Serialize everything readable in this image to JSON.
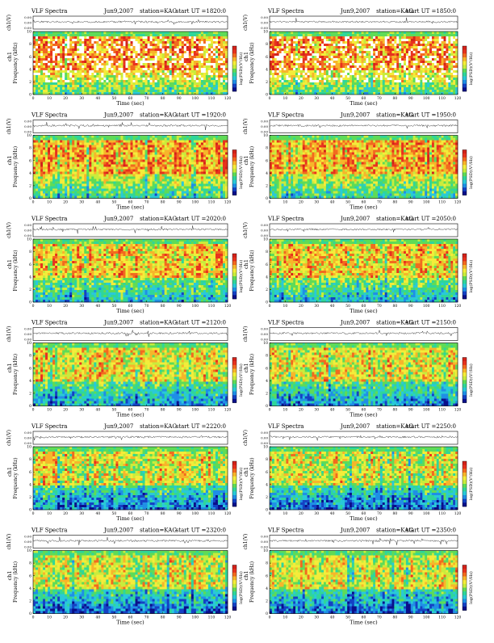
{
  "page": {
    "background": "#ffffff"
  },
  "colormap": [
    "#ffffff",
    "#d4221a",
    "#e8321e",
    "#f26a1f",
    "#f7b52a",
    "#f4ec3a",
    "#c9ec3c",
    "#5fdb57",
    "#2fd69a",
    "#29c9d8",
    "#1f8fe6",
    "#1541c4",
    "#0b0f8a"
  ],
  "chart_data": [
    {
      "type": "heatmap",
      "id": "p1",
      "title": "VLF Spectra",
      "date": "Jun9,2007",
      "station": "station=KAG",
      "start": "start UT =1820:0",
      "intensity": 0.92,
      "ylabel_wave": "ch1(V)",
      "wave_ticks": [
        "0.00",
        "0.00",
        "0.00"
      ],
      "ylabel_chan": "ch1",
      "ylabel_freq": "Frequency (kHz)",
      "xlabel": "Time (sec)",
      "xlim": [
        0,
        120
      ],
      "ylim": [
        0,
        10
      ],
      "xticks": [
        "0",
        "10",
        "20",
        "30",
        "40",
        "50",
        "60",
        "70",
        "80",
        "90",
        "100",
        "110",
        "120"
      ],
      "yticks": [
        "0",
        "2",
        "4",
        "6",
        "8",
        "10"
      ],
      "colorbar_label": "log(PSD)(V²/Hz)"
    },
    {
      "type": "heatmap",
      "id": "p2",
      "title": "VLF Spectra",
      "date": "Jun9,2007",
      "station": "station=KAG",
      "start": "start UT =1850:0",
      "intensity": 0.9,
      "ylabel_wave": "ch1(V)",
      "wave_ticks": [
        "0.00",
        "0.00",
        "0.00"
      ],
      "ylabel_chan": "ch1",
      "ylabel_freq": "Frequency (kHz)",
      "xlabel": "Time (sec)",
      "xlim": [
        0,
        120
      ],
      "ylim": [
        0,
        10
      ],
      "xticks": [
        "0",
        "10",
        "20",
        "30",
        "40",
        "50",
        "60",
        "70",
        "80",
        "90",
        "100",
        "110",
        "120"
      ],
      "yticks": [
        "0",
        "2",
        "4",
        "6",
        "8",
        "10"
      ],
      "colorbar_label": "log(PSD)(V²/Hz)"
    },
    {
      "type": "heatmap",
      "id": "p3",
      "title": "VLF Spectra",
      "date": "Jun9,2007",
      "station": "station=KAG",
      "start": "start UT =1920:0",
      "intensity": 0.82,
      "ylabel_wave": "ch1(V)",
      "wave_ticks": [
        "0.00",
        "0.00",
        "0.00"
      ],
      "ylabel_chan": "ch1",
      "ylabel_freq": "Frequency (kHz)",
      "xlabel": "Time (sec)",
      "xlim": [
        0,
        120
      ],
      "ylim": [
        0,
        10
      ],
      "xticks": [
        "0",
        "10",
        "20",
        "30",
        "40",
        "50",
        "60",
        "70",
        "80",
        "90",
        "100",
        "110",
        "120"
      ],
      "yticks": [
        "0",
        "2",
        "4",
        "6",
        "8",
        "10"
      ],
      "colorbar_label": "log(PSD)(V²/Hz)"
    },
    {
      "type": "heatmap",
      "id": "p4",
      "title": "VLF Spectra",
      "date": "Jun9,2007",
      "station": "station=KAG",
      "start": "start UT =1950:0",
      "intensity": 0.8,
      "ylabel_wave": "ch1(V)",
      "wave_ticks": [
        "0.00",
        "0.00",
        "0.00"
      ],
      "ylabel_chan": "ch1",
      "ylabel_freq": "Frequency (kHz)",
      "xlabel": "Time (sec)",
      "xlim": [
        0,
        120
      ],
      "ylim": [
        0,
        10
      ],
      "xticks": [
        "0",
        "10",
        "20",
        "30",
        "40",
        "50",
        "60",
        "70",
        "80",
        "90",
        "100",
        "110",
        "120"
      ],
      "yticks": [
        "0",
        "2",
        "4",
        "6",
        "8",
        "10"
      ],
      "colorbar_label": "log(PSD)(V²/Hz)"
    },
    {
      "type": "heatmap",
      "id": "p5",
      "title": "VLF Spectra",
      "date": "Jun9,2007",
      "station": "station=KAG",
      "start": "start UT =2020:0",
      "intensity": 0.65,
      "ylabel_wave": "ch1(V)",
      "wave_ticks": [
        "0.00",
        "0.00",
        "0.00"
      ],
      "ylabel_chan": "ch1",
      "ylabel_freq": "Frequency (kHz)",
      "xlabel": "Time (sec)",
      "xlim": [
        0,
        120
      ],
      "ylim": [
        0,
        10
      ],
      "xticks": [
        "0",
        "10",
        "20",
        "30",
        "40",
        "50",
        "60",
        "70",
        "80",
        "90",
        "100",
        "110",
        "120"
      ],
      "yticks": [
        "0",
        "2",
        "4",
        "6",
        "8",
        "10"
      ],
      "colorbar_label": "log(PSD)(V²/Hz)"
    },
    {
      "type": "heatmap",
      "id": "p6",
      "title": "VLF Spectra",
      "date": "Jun9,2007",
      "station": "station=KAG",
      "start": "start UT =2050:0",
      "intensity": 0.62,
      "ylabel_wave": "ch1(V)",
      "wave_ticks": [
        "0.00",
        "0.00",
        "0.00"
      ],
      "ylabel_chan": "ch1",
      "ylabel_freq": "Frequency (kHz)",
      "xlabel": "Time (sec)",
      "xlim": [
        0,
        120
      ],
      "ylim": [
        0,
        10
      ],
      "xticks": [
        "0",
        "10",
        "20",
        "30",
        "40",
        "50",
        "60",
        "70",
        "80",
        "90",
        "100",
        "110",
        "120"
      ],
      "yticks": [
        "0",
        "2",
        "4",
        "6",
        "8",
        "10"
      ],
      "colorbar_label": "log(PSD)(V²/Hz)"
    },
    {
      "type": "heatmap",
      "id": "p7",
      "title": "VLF Spectra",
      "date": "Jun9,2007",
      "station": "station=KAG",
      "start": "start UT =2120:0",
      "intensity": 0.55,
      "ylabel_wave": "ch1(V)",
      "wave_ticks": [
        "0.00",
        "0.00",
        "0.00"
      ],
      "ylabel_chan": "ch1",
      "ylabel_freq": "Frequency (kHz)",
      "xlabel": "Time (sec)",
      "xlim": [
        0,
        120
      ],
      "ylim": [
        0,
        10
      ],
      "xticks": [
        "0",
        "10",
        "20",
        "30",
        "40",
        "50",
        "60",
        "70",
        "80",
        "90",
        "100",
        "110",
        "120"
      ],
      "yticks": [
        "0",
        "2",
        "4",
        "6",
        "8",
        "10"
      ],
      "colorbar_label": "log(PSD)(V²/Hz)"
    },
    {
      "type": "heatmap",
      "id": "p8",
      "title": "VLF Spectra",
      "date": "Jun9,2007",
      "station": "station=KAG",
      "start": "start UT =2150:0",
      "intensity": 0.52,
      "ylabel_wave": "ch1(V)",
      "wave_ticks": [
        "0.00",
        "0.00",
        "0.00"
      ],
      "ylabel_chan": "ch1",
      "ylabel_freq": "Frequency (kHz)",
      "xlabel": "Time (sec)",
      "xlim": [
        0,
        120
      ],
      "ylim": [
        0,
        10
      ],
      "xticks": [
        "0",
        "10",
        "20",
        "30",
        "40",
        "50",
        "60",
        "70",
        "80",
        "90",
        "100",
        "110",
        "120"
      ],
      "yticks": [
        "0",
        "2",
        "4",
        "6",
        "8",
        "10"
      ],
      "colorbar_label": "log(PSD)(V²/Hz)"
    },
    {
      "type": "heatmap",
      "id": "p9",
      "title": "VLF Spectra",
      "date": "Jun9,2007",
      "station": "station=KAG",
      "start": "start UT =2220:0",
      "intensity": 0.45,
      "ylabel_wave": "ch1(V)",
      "wave_ticks": [
        "0.00",
        "0.00",
        "0.00"
      ],
      "ylabel_chan": "ch1",
      "ylabel_freq": "Frequency (kHz)",
      "xlabel": "Time (sec)",
      "xlim": [
        0,
        120
      ],
      "ylim": [
        0,
        10
      ],
      "xticks": [
        "0",
        "10",
        "20",
        "30",
        "40",
        "50",
        "60",
        "70",
        "80",
        "90",
        "100",
        "110",
        "120"
      ],
      "yticks": [
        "0",
        "2",
        "4",
        "6",
        "8",
        "10"
      ],
      "colorbar_label": "log(PSD)(V²/Hz)"
    },
    {
      "type": "heatmap",
      "id": "p10",
      "title": "VLF Spectra",
      "date": "Jun9,2007",
      "station": "station=KAG",
      "start": "start UT =2250:0",
      "intensity": 0.45,
      "ylabel_wave": "ch1(V)",
      "wave_ticks": [
        "0.00",
        "0.00",
        "0.00"
      ],
      "ylabel_chan": "ch1",
      "ylabel_freq": "Frequency (kHz)",
      "xlabel": "Time (sec)",
      "xlim": [
        0,
        120
      ],
      "ylim": [
        0,
        10
      ],
      "xticks": [
        "0",
        "10",
        "20",
        "30",
        "40",
        "50",
        "60",
        "70",
        "80",
        "90",
        "100",
        "110",
        "120"
      ],
      "yticks": [
        "0",
        "2",
        "4",
        "6",
        "8",
        "10"
      ],
      "colorbar_label": "log(PSD)(V²/Hz)"
    },
    {
      "type": "heatmap",
      "id": "p11",
      "title": "VLF Spectra",
      "date": "Jun9,2007",
      "station": "station=KAG",
      "start": "start UT =2320:0",
      "intensity": 0.42,
      "ylabel_wave": "ch1(V)",
      "wave_ticks": [
        "0.00",
        "0.00",
        "0.00"
      ],
      "ylabel_chan": "ch1",
      "ylabel_freq": "Frequency (kHz)",
      "xlabel": "Time (sec)",
      "xlim": [
        0,
        120
      ],
      "ylim": [
        0,
        10
      ],
      "xticks": [
        "0",
        "10",
        "20",
        "30",
        "40",
        "50",
        "60",
        "70",
        "80",
        "90",
        "100",
        "110",
        "120"
      ],
      "yticks": [
        "0",
        "2",
        "4",
        "6",
        "8",
        "10"
      ],
      "colorbar_label": "log(PSD)(V²/Hz)"
    },
    {
      "type": "heatmap",
      "id": "p12",
      "title": "VLF Spectra",
      "date": "Jun9,2007",
      "station": "station=KAG",
      "start": "start UT =2350:0",
      "intensity": 0.42,
      "ylabel_wave": "ch1(V)",
      "wave_ticks": [
        "0.00",
        "0.00",
        "0.00"
      ],
      "ylabel_chan": "ch1",
      "ylabel_freq": "Frequency (kHz)",
      "xlabel": "Time (sec)",
      "xlim": [
        0,
        120
      ],
      "ylim": [
        0,
        10
      ],
      "xticks": [
        "0",
        "10",
        "20",
        "30",
        "40",
        "50",
        "60",
        "70",
        "80",
        "90",
        "100",
        "110",
        "120"
      ],
      "yticks": [
        "0",
        "2",
        "4",
        "6",
        "8",
        "10"
      ],
      "colorbar_label": "log(PSD)(V²/Hz)"
    }
  ]
}
